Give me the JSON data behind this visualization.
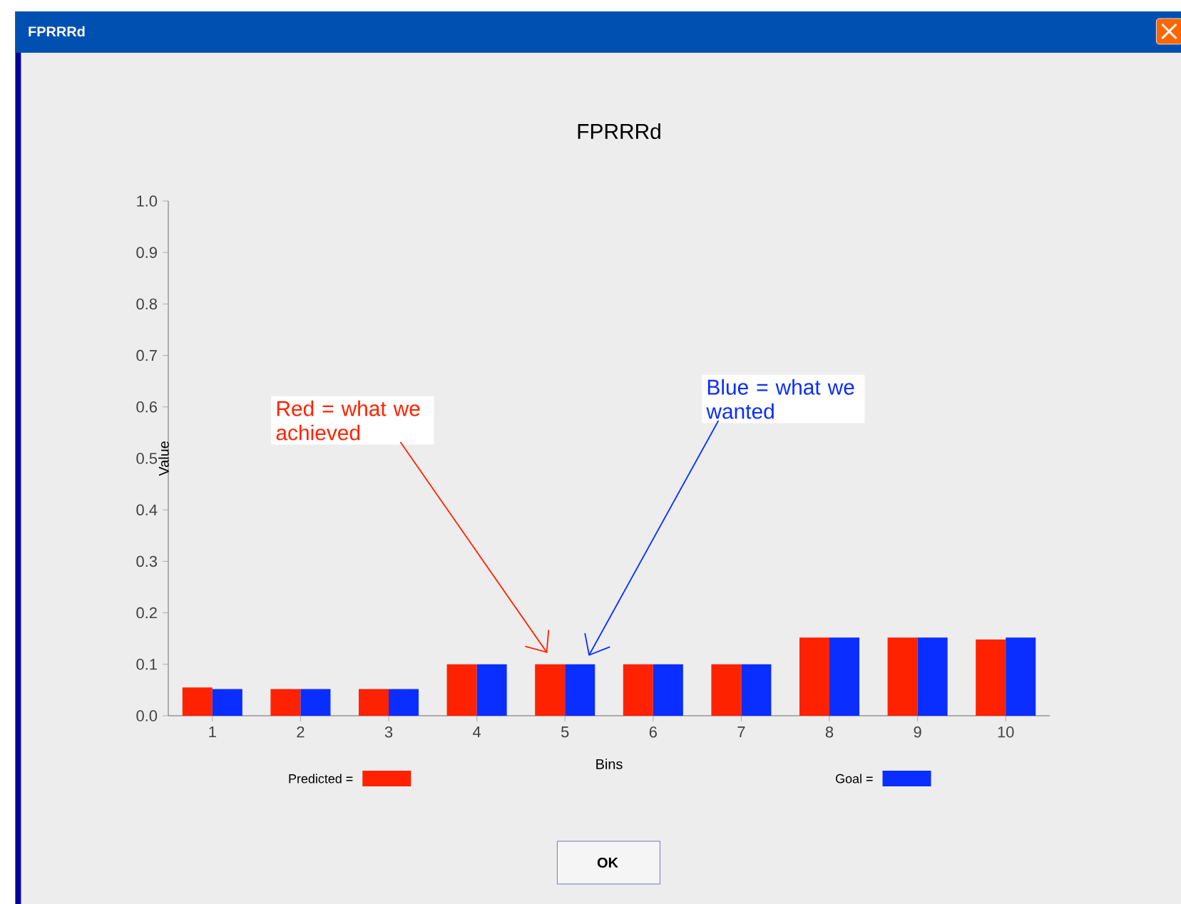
{
  "chart_data": {
    "type": "bar",
    "title": "FPRRRd",
    "xlabel": "Bins",
    "ylabel": "Value",
    "categories": [
      "1",
      "2",
      "3",
      "4",
      "5",
      "6",
      "7",
      "8",
      "9",
      "10"
    ],
    "series": [
      {
        "name": "Predicted =",
        "color": "#ff2200",
        "values": [
          0.055,
          0.052,
          0.052,
          0.1,
          0.1,
          0.1,
          0.1,
          0.152,
          0.152,
          0.148
        ]
      },
      {
        "name": "Goal =",
        "color": "#0a2eff",
        "values": [
          0.052,
          0.052,
          0.052,
          0.1,
          0.1,
          0.1,
          0.1,
          0.152,
          0.152,
          0.152
        ]
      }
    ],
    "ylim": [
      0,
      1
    ],
    "yticks": [
      {
        "value": 0,
        "label": "0.0"
      },
      {
        "value": 0.1,
        "label": "0.1"
      },
      {
        "value": 0.2,
        "label": "0.2"
      },
      {
        "value": 0.3,
        "label": "0.3"
      },
      {
        "value": 0.4,
        "label": "0.4"
      },
      {
        "value": 0.5,
        "label": "0.5"
      },
      {
        "value": 0.6,
        "label": "0.6"
      },
      {
        "value": 0.7,
        "label": "0.7"
      },
      {
        "value": 0.8,
        "label": "0.8"
      },
      {
        "value": 0.9,
        "label": "0.9"
      },
      {
        "value": 1,
        "label": "1.0"
      }
    ],
    "grid": false,
    "legend": "bottom",
    "annotations": [
      "Red = what we achieved",
      "Blue = what we wanted",
      "FPRRRd",
      "OK"
    ]
  }
}
